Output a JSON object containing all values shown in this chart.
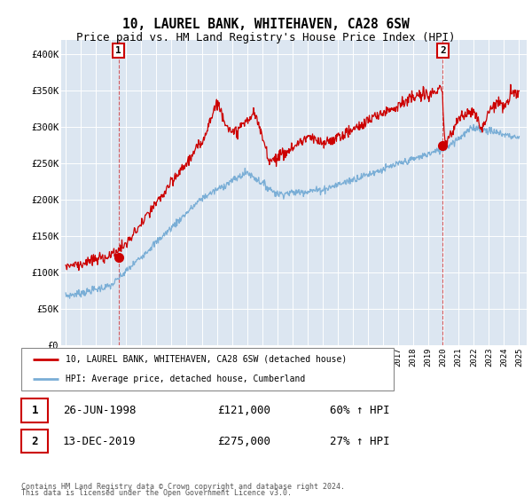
{
  "title": "10, LAUREL BANK, WHITEHAVEN, CA28 6SW",
  "subtitle": "Price paid vs. HM Land Registry's House Price Index (HPI)",
  "ylim": [
    0,
    420000
  ],
  "yticks": [
    0,
    50000,
    100000,
    150000,
    200000,
    250000,
    300000,
    350000,
    400000
  ],
  "ytick_labels": [
    "£0",
    "£50K",
    "£100K",
    "£150K",
    "£200K",
    "£250K",
    "£300K",
    "£350K",
    "£400K"
  ],
  "bg_color": "#dce6f1",
  "red_color": "#cc0000",
  "blue_color": "#7aaed6",
  "legend_label_red": "10, LAUREL BANK, WHITEHAVEN, CA28 6SW (detached house)",
  "legend_label_blue": "HPI: Average price, detached house, Cumberland",
  "sale1_date": "26-JUN-1998",
  "sale1_price": "£121,000",
  "sale1_hpi": "60% ↑ HPI",
  "sale1_x": 1998.49,
  "sale1_y": 121000,
  "sale2_date": "13-DEC-2019",
  "sale2_price": "£275,000",
  "sale2_hpi": "27% ↑ HPI",
  "sale2_x": 2019.95,
  "sale2_y": 275000,
  "footnote1": "Contains HM Land Registry data © Crown copyright and database right 2024.",
  "footnote2": "This data is licensed under the Open Government Licence v3.0.",
  "xmin": 1994.7,
  "xmax": 2025.5
}
